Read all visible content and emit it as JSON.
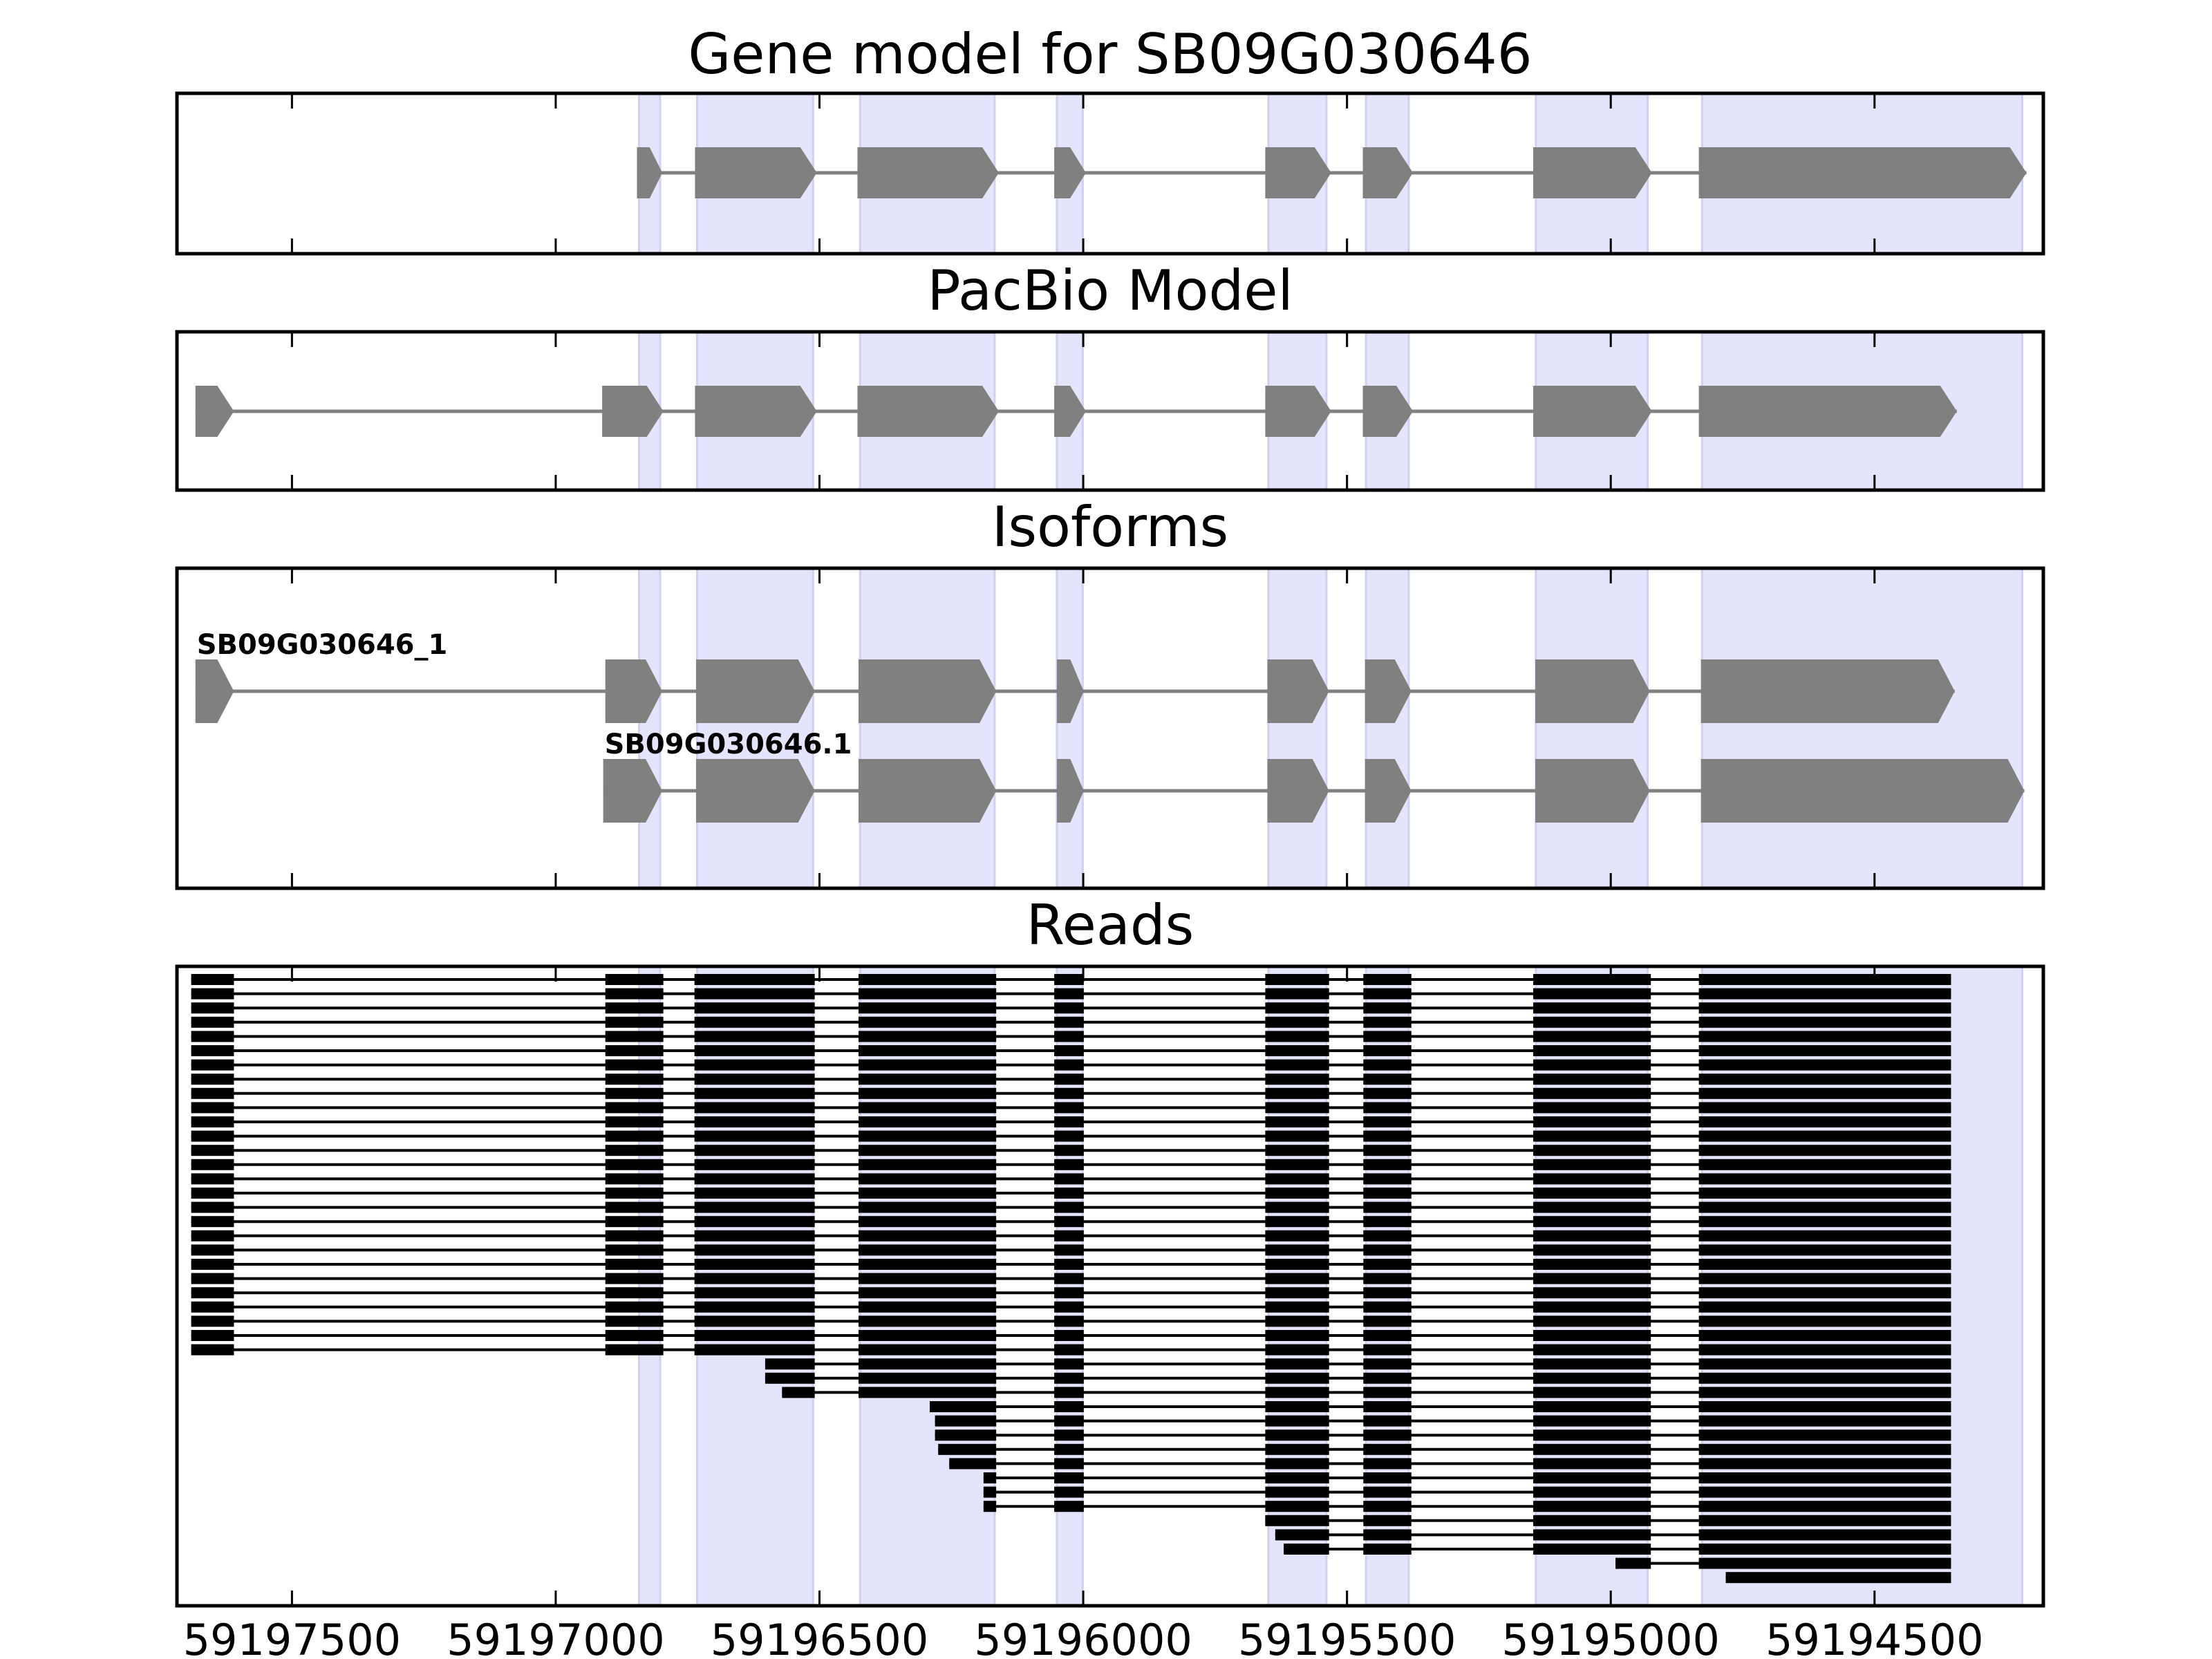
{
  "chart_data": [
    {
      "type": "gene-track",
      "title": "Gene model for SB09G030646",
      "style": "arrow",
      "color": "#808080",
      "tracks": [
        {
          "label": "",
          "exons": [
            [
              59196846,
              59196798
            ],
            [
              59196736,
              59196505
            ],
            [
              59196428,
              59196160
            ],
            [
              59196055,
              59195995
            ],
            [
              59195655,
              59195530
            ],
            [
              59195470,
              59195375
            ],
            [
              59195147,
              59194922
            ],
            [
              59194833,
              59194212
            ]
          ]
        }
      ]
    },
    {
      "type": "gene-track",
      "title": "PacBio Model",
      "style": "arrow",
      "color": "#808080",
      "tracks": [
        {
          "label": "",
          "exons": [
            [
              59197683,
              59197610
            ],
            [
              59196912,
              59196796
            ],
            [
              59196736,
              59196505
            ],
            [
              59196428,
              59196160
            ],
            [
              59196055,
              59195995
            ],
            [
              59195655,
              59195530
            ],
            [
              59195470,
              59195375
            ],
            [
              59195147,
              59194922
            ],
            [
              59194833,
              59194344
            ]
          ]
        }
      ]
    },
    {
      "type": "gene-track",
      "title": "Isoforms",
      "style": "arrow",
      "color": "#808080",
      "tracks": [
        {
          "label": "SB09G030646_1",
          "exons": [
            [
              59197683,
              59197610
            ],
            [
              59196906,
              59196798
            ],
            [
              59196734,
              59196509
            ],
            [
              59196426,
              59196165
            ],
            [
              59196050,
              59195999
            ],
            [
              59195651,
              59195534
            ],
            [
              59195466,
              59195378
            ],
            [
              59195143,
              59194926
            ],
            [
              59194829,
              59194348
            ]
          ]
        },
        {
          "label": "SB09G030646.1",
          "exons": [
            [
              59196910,
              59196798
            ],
            [
              59196734,
              59196509
            ],
            [
              59196426,
              59196165
            ],
            [
              59196050,
              59195999
            ],
            [
              59195651,
              59195534
            ],
            [
              59195466,
              59195378
            ],
            [
              59195143,
              59194926
            ],
            [
              59194829,
              59194216
            ]
          ]
        }
      ]
    },
    {
      "type": "reads",
      "title": "Reads",
      "color": "#000000",
      "full_read": [
        [
          59197691,
          59197610
        ],
        [
          59196906,
          59196796
        ],
        [
          59196737,
          59196509
        ],
        [
          59196426,
          59196165
        ],
        [
          59196055,
          59195999
        ],
        [
          59195655,
          59195534
        ],
        [
          59195469,
          59195378
        ],
        [
          59195147,
          59194924
        ],
        [
          59194833,
          59194355
        ]
      ],
      "full_read_count": 27,
      "partial_reads": [
        [
          [
            59196603,
            59196509
          ],
          [
            59196426,
            59196165
          ],
          [
            59196055,
            59195999
          ],
          [
            59195655,
            59195534
          ],
          [
            59195469,
            59195378
          ],
          [
            59195147,
            59194924
          ],
          [
            59194833,
            59194355
          ]
        ],
        [
          [
            59196603,
            59196509
          ],
          [
            59196426,
            59196165
          ],
          [
            59196055,
            59195999
          ],
          [
            59195655,
            59195534
          ],
          [
            59195469,
            59195378
          ],
          [
            59195147,
            59194924
          ],
          [
            59194833,
            59194355
          ]
        ],
        [
          [
            59196571,
            59196509
          ],
          [
            59196426,
            59196165
          ],
          [
            59196055,
            59195999
          ],
          [
            59195655,
            59195534
          ],
          [
            59195469,
            59195378
          ],
          [
            59195147,
            59194924
          ],
          [
            59194833,
            59194355
          ]
        ],
        [
          [
            59196291,
            59196165
          ],
          [
            59196055,
            59195999
          ],
          [
            59195655,
            59195534
          ],
          [
            59195469,
            59195378
          ],
          [
            59195147,
            59194924
          ],
          [
            59194833,
            59194355
          ]
        ],
        [
          [
            59196281,
            59196165
          ],
          [
            59196055,
            59195999
          ],
          [
            59195655,
            59195534
          ],
          [
            59195469,
            59195378
          ],
          [
            59195147,
            59194924
          ],
          [
            59194833,
            59194355
          ]
        ],
        [
          [
            59196281,
            59196165
          ],
          [
            59196055,
            59195999
          ],
          [
            59195655,
            59195534
          ],
          [
            59195469,
            59195378
          ],
          [
            59195147,
            59194924
          ],
          [
            59194833,
            59194355
          ]
        ],
        [
          [
            59196275,
            59196165
          ],
          [
            59196055,
            59195999
          ],
          [
            59195655,
            59195534
          ],
          [
            59195469,
            59195378
          ],
          [
            59195147,
            59194924
          ],
          [
            59194833,
            59194355
          ]
        ],
        [
          [
            59196254,
            59196165
          ],
          [
            59196055,
            59195999
          ],
          [
            59195655,
            59195534
          ],
          [
            59195469,
            59195378
          ],
          [
            59195147,
            59194924
          ],
          [
            59194833,
            59194355
          ]
        ],
        [
          [
            59196189,
            59196165
          ],
          [
            59196055,
            59195999
          ],
          [
            59195655,
            59195534
          ],
          [
            59195469,
            59195378
          ],
          [
            59195147,
            59194924
          ],
          [
            59194833,
            59194355
          ]
        ],
        [
          [
            59196189,
            59196165
          ],
          [
            59196055,
            59195999
          ],
          [
            59195655,
            59195534
          ],
          [
            59195469,
            59195378
          ],
          [
            59195147,
            59194924
          ],
          [
            59194833,
            59194355
          ]
        ],
        [
          [
            59196189,
            59196165
          ],
          [
            59196055,
            59195999
          ],
          [
            59195655,
            59195534
          ],
          [
            59195469,
            59195378
          ],
          [
            59195147,
            59194924
          ],
          [
            59194833,
            59194355
          ]
        ],
        [
          [
            59195655,
            59195534
          ],
          [
            59195469,
            59195378
          ],
          [
            59195147,
            59194924
          ],
          [
            59194833,
            59194355
          ]
        ],
        [
          [
            59195636,
            59195534
          ],
          [
            59195469,
            59195378
          ],
          [
            59195147,
            59194924
          ],
          [
            59194833,
            59194355
          ]
        ],
        [
          [
            59195620,
            59195534
          ],
          [
            59195469,
            59195378
          ],
          [
            59195147,
            59194924
          ],
          [
            59194833,
            59194355
          ]
        ],
        [
          [
            59194991,
            59194924
          ],
          [
            59194833,
            59194355
          ]
        ],
        [
          [
            59194782,
            59194355
          ]
        ]
      ]
    }
  ],
  "shaded_regions": {
    "color": "#e4e4fc",
    "regions": [
      [
        59196842,
        59196802
      ],
      [
        59196732,
        59196512
      ],
      [
        59196423,
        59196168
      ],
      [
        59196050,
        59196001
      ],
      [
        59195649,
        59195539
      ],
      [
        59195464,
        59195383
      ],
      [
        59195142,
        59194930
      ],
      [
        59194827,
        59194220
      ]
    ]
  },
  "x_axis": {
    "xlim": [
      59197718,
      59194180
    ],
    "ticks": [
      59197500,
      59197000,
      59196500,
      59196000,
      59195500,
      59195000,
      59194500
    ],
    "tick_labels": [
      "59197500",
      "59197000",
      "59196500",
      "59196000",
      "59195500",
      "59195000",
      "59194500"
    ]
  }
}
